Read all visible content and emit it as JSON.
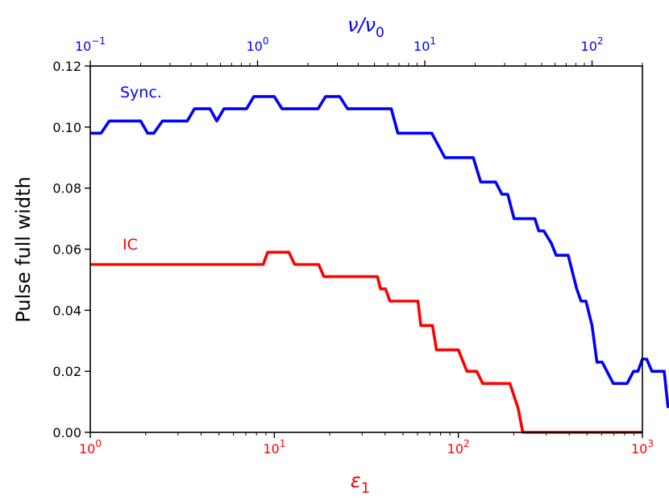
{
  "chart_data": {
    "type": "line",
    "x_axis": {
      "scale": "log",
      "range": [
        1,
        1000
      ],
      "label": "ε",
      "label_sub": "1",
      "ticks": [
        1,
        10,
        100,
        1000
      ],
      "tick_labels": [
        {
          "base": "10",
          "exp": "0"
        },
        {
          "base": "10",
          "exp": "1"
        },
        {
          "base": "10",
          "exp": "2"
        },
        {
          "base": "10",
          "exp": "3"
        }
      ],
      "color": "#ff0000"
    },
    "x2_axis": {
      "scale": "log",
      "range": [
        0.1,
        200
      ],
      "label": "ν/ν",
      "label_sub": "0",
      "ticks": [
        0.1,
        1,
        10,
        100
      ],
      "tick_labels": [
        {
          "base": "10",
          "exp": "−1"
        },
        {
          "base": "10",
          "exp": "0"
        },
        {
          "base": "10",
          "exp": "1"
        },
        {
          "base": "10",
          "exp": "2"
        }
      ],
      "color": "#0000ff"
    },
    "y_axis": {
      "label": "Pulse full width",
      "range": [
        0,
        0.12
      ],
      "ticks": [
        0,
        0.02,
        0.04,
        0.06,
        0.08,
        0.1,
        0.12
      ],
      "tick_labels": [
        "0.00",
        "0.02",
        "0.04",
        "0.06",
        "0.08",
        "0.10",
        "0.12"
      ]
    },
    "series": [
      {
        "name": "Sync.",
        "color": "#0000ff",
        "axis": "x2",
        "points": [
          [
            0.1,
            0.098
          ],
          [
            0.116,
            0.098
          ],
          [
            0.13,
            0.102
          ],
          [
            0.2,
            0.102
          ],
          [
            0.22,
            0.098
          ],
          [
            0.24,
            0.098
          ],
          [
            0.27,
            0.102
          ],
          [
            0.38,
            0.102
          ],
          [
            0.42,
            0.106
          ],
          [
            0.52,
            0.106
          ],
          [
            0.57,
            0.102
          ],
          [
            0.63,
            0.106
          ],
          [
            0.86,
            0.106
          ],
          [
            0.95,
            0.11
          ],
          [
            1.26,
            0.11
          ],
          [
            1.4,
            0.106
          ],
          [
            2.3,
            0.106
          ],
          [
            2.55,
            0.11
          ],
          [
            3.1,
            0.11
          ],
          [
            3.45,
            0.106
          ],
          [
            6.3,
            0.106
          ],
          [
            6.9,
            0.098
          ],
          [
            11,
            0.098
          ],
          [
            13.2,
            0.09
          ],
          [
            19.5,
            0.09
          ],
          [
            21.6,
            0.082
          ],
          [
            26.5,
            0.082
          ],
          [
            28.9,
            0.078
          ],
          [
            31.3,
            0.078
          ],
          [
            34.2,
            0.07
          ],
          [
            45.5,
            0.07
          ],
          [
            48,
            0.066
          ],
          [
            51.5,
            0.066
          ],
          [
            57,
            0.062
          ],
          [
            61,
            0.058
          ],
          [
            72,
            0.058
          ],
          [
            81,
            0.047
          ],
          [
            86,
            0.043
          ],
          [
            92,
            0.043
          ],
          [
            100,
            0.035
          ],
          [
            107,
            0.023
          ],
          [
            115,
            0.023
          ],
          [
            134,
            0.016
          ],
          [
            162,
            0.016
          ],
          [
            177,
            0.02
          ],
          [
            188,
            0.02
          ],
          [
            200,
            0.024
          ],
          [
            212,
            0.024
          ],
          [
            228,
            0.02
          ],
          [
            270,
            0.02
          ],
          [
            285,
            0.008
          ]
        ]
      },
      {
        "name": "IC",
        "color": "#ff0000",
        "axis": "x",
        "points": [
          [
            1,
            0.055
          ],
          [
            8.7,
            0.055
          ],
          [
            9.2,
            0.059
          ],
          [
            12,
            0.059
          ],
          [
            12.9,
            0.055
          ],
          [
            17.4,
            0.055
          ],
          [
            18.6,
            0.051
          ],
          [
            36.3,
            0.051
          ],
          [
            37.8,
            0.047
          ],
          [
            40.2,
            0.047
          ],
          [
            42.5,
            0.043
          ],
          [
            60.3,
            0.043
          ],
          [
            62.5,
            0.035
          ],
          [
            72.4,
            0.035
          ],
          [
            76,
            0.027
          ],
          [
            100,
            0.027
          ],
          [
            111.3,
            0.02
          ],
          [
            125.9,
            0.02
          ],
          [
            135.5,
            0.016
          ],
          [
            190.6,
            0.016
          ],
          [
            211,
            0.008
          ],
          [
            224,
            0.0
          ],
          [
            1000,
            0.0
          ]
        ]
      }
    ],
    "annotations": [
      {
        "text": "Sync.",
        "color": "#0000ff"
      },
      {
        "text": "IC",
        "color": "#ff0000"
      }
    ]
  }
}
